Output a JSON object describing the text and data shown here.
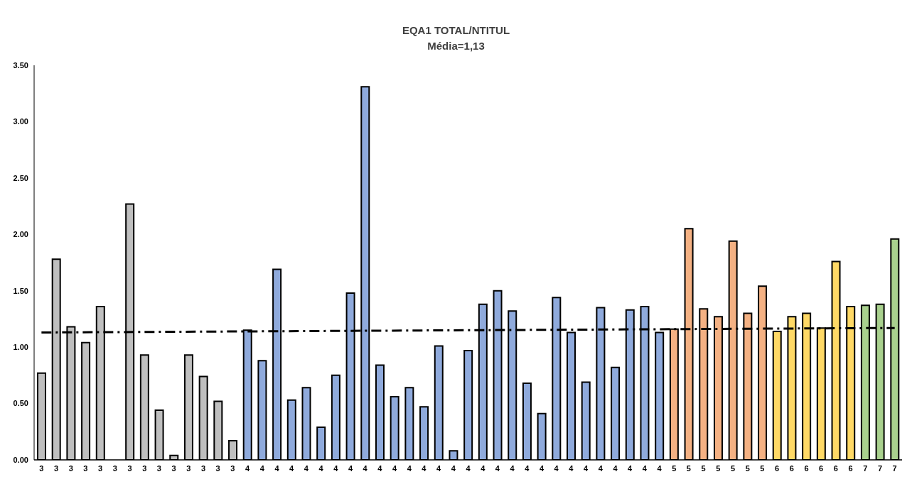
{
  "chart_data": {
    "type": "bar",
    "title": "EQA1 TOTAL/NTITUL",
    "subtitle": "Média=1,13",
    "categories": [
      "3",
      "3",
      "3",
      "3",
      "3",
      "3",
      "3",
      "3",
      "3",
      "3",
      "3",
      "3",
      "3",
      "3",
      "4",
      "4",
      "4",
      "4",
      "4",
      "4",
      "4",
      "4",
      "4",
      "4",
      "4",
      "4",
      "4",
      "4",
      "4",
      "4",
      "4",
      "4",
      "4",
      "4",
      "4",
      "4",
      "4",
      "4",
      "4",
      "4",
      "4",
      "4",
      "4",
      "5",
      "5",
      "5",
      "5",
      "5",
      "5",
      "5",
      "6",
      "6",
      "6",
      "6",
      "6",
      "6",
      "7",
      "7",
      "7"
    ],
    "series": [
      {
        "values": [
          0.77,
          1.78,
          1.18,
          1.04,
          1.36,
          null,
          2.27,
          0.93,
          0.44,
          0.04,
          0.93,
          0.74,
          0.52,
          0.17,
          1.15,
          0.88,
          1.69,
          0.53,
          0.64,
          0.29,
          0.75,
          1.48,
          3.31,
          0.84,
          0.56,
          0.64,
          0.47,
          1.01,
          0.08,
          0.97,
          1.38,
          1.5,
          1.32,
          0.68,
          0.41,
          1.44,
          1.13,
          0.69,
          1.35,
          0.82,
          1.33,
          1.36,
          1.13,
          1.16,
          2.05,
          1.34,
          1.27,
          1.94,
          1.3,
          1.54,
          1.14,
          1.27,
          1.3,
          1.17,
          1.76,
          1.36,
          1.37,
          1.38,
          1.96
        ],
        "colors": [
          "#bfbfbf",
          "#bfbfbf",
          "#bfbfbf",
          "#bfbfbf",
          "#bfbfbf",
          "#bfbfbf",
          "#bfbfbf",
          "#bfbfbf",
          "#bfbfbf",
          "#bfbfbf",
          "#bfbfbf",
          "#bfbfbf",
          "#bfbfbf",
          "#bfbfbf",
          "#8faadc",
          "#8faadc",
          "#8faadc",
          "#8faadc",
          "#8faadc",
          "#8faadc",
          "#8faadc",
          "#8faadc",
          "#8faadc",
          "#8faadc",
          "#8faadc",
          "#8faadc",
          "#8faadc",
          "#8faadc",
          "#8faadc",
          "#8faadc",
          "#8faadc",
          "#8faadc",
          "#8faadc",
          "#8faadc",
          "#8faadc",
          "#8faadc",
          "#8faadc",
          "#8faadc",
          "#8faadc",
          "#8faadc",
          "#8faadc",
          "#8faadc",
          "#8faadc",
          "#f4b183",
          "#f4b183",
          "#f4b183",
          "#f4b183",
          "#f4b183",
          "#f4b183",
          "#f4b183",
          "#ffd966",
          "#ffd966",
          "#ffd966",
          "#ffd966",
          "#ffd966",
          "#ffd966",
          "#a9d18e",
          "#a9d18e",
          "#a9d18e"
        ]
      },
      {
        "type": "line",
        "color": "#000000",
        "line_style": "dashed",
        "values": [
          1.13,
          null,
          null,
          null,
          null,
          null,
          null,
          null,
          null,
          null,
          null,
          null,
          null,
          null,
          null,
          null,
          null,
          null,
          null,
          null,
          null,
          null,
          null,
          null,
          null,
          null,
          null,
          null,
          null,
          null,
          null,
          null,
          null,
          null,
          null,
          null,
          null,
          null,
          null,
          null,
          null,
          null,
          null,
          null,
          null,
          null,
          null,
          null,
          null,
          null,
          null,
          null,
          null,
          null,
          null,
          null,
          null,
          null,
          1.17
        ]
      }
    ],
    "ylim": [
      0,
      3.5
    ],
    "yticks": [
      {
        "value": 0,
        "label": "0.00"
      },
      {
        "value": 0.5,
        "label": "0.50"
      },
      {
        "value": 1,
        "label": "1.00"
      },
      {
        "value": 1.5,
        "label": "1.50"
      },
      {
        "value": 2,
        "label": "2.00"
      },
      {
        "value": 2.5,
        "label": "2.50"
      },
      {
        "value": 3,
        "label": "3.00"
      },
      {
        "value": 3.5,
        "label": "3.50"
      }
    ],
    "grid": false,
    "legend": false
  }
}
